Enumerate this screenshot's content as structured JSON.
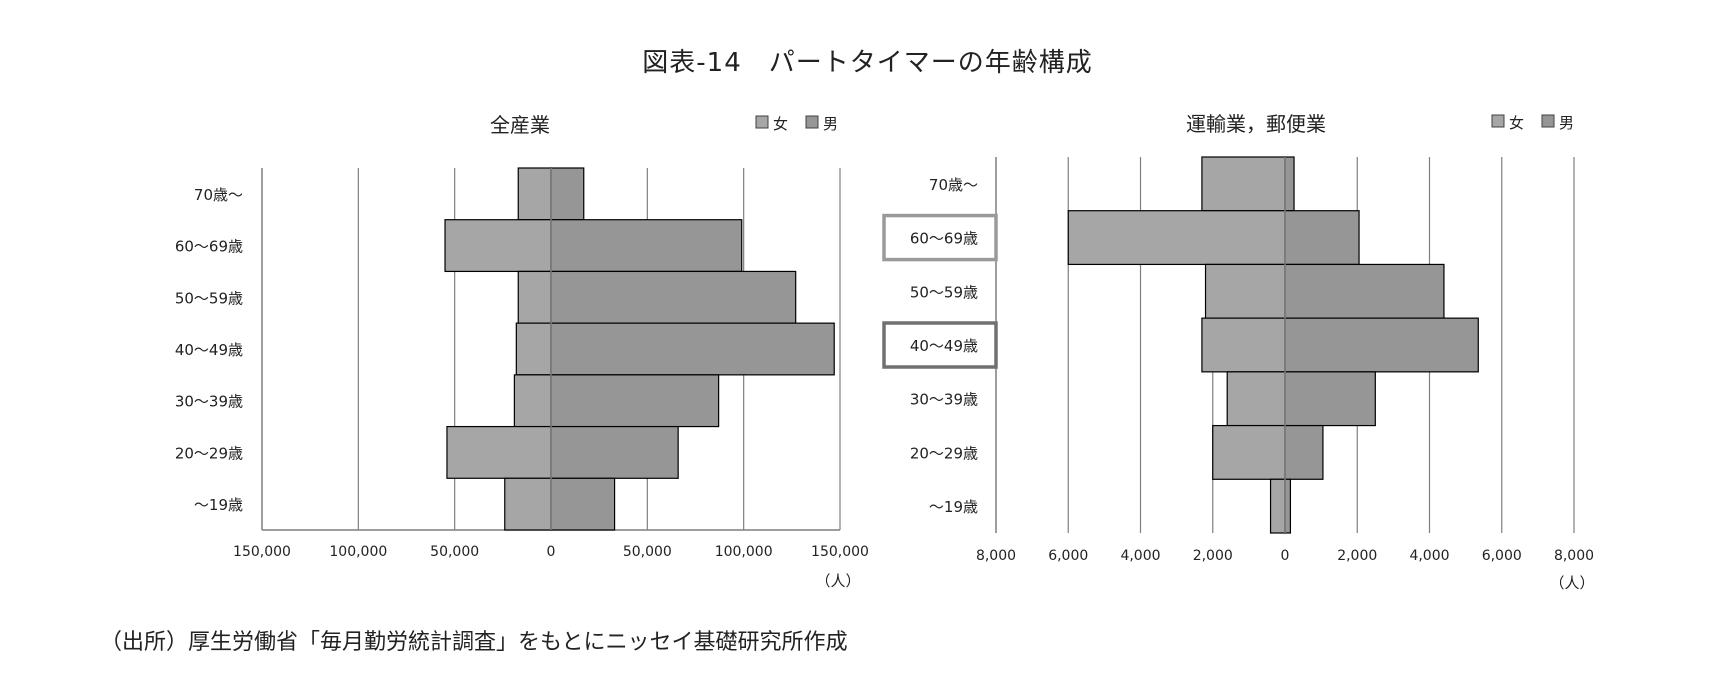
{
  "title": "図表-14　パートタイマーの年齢構成",
  "source": "（出所）厚生労働省「毎月勤労統計調査」をもとにニッセイ基礎研究所作成",
  "colors": {
    "female": "#a6a6a6",
    "male": "#969696",
    "grid": "#7f7f7f",
    "edge": "#000000"
  },
  "chart_data": [
    {
      "type": "bar",
      "title": "全産業",
      "categories": [
        "70歳～",
        "60～69歳",
        "50～59歳",
        "40～49歳",
        "30～39歳",
        "20～29歳",
        "～19歳"
      ],
      "series": [
        {
          "name": "女",
          "values": [
            17000,
            55000,
            17000,
            18000,
            19000,
            54000,
            24000
          ]
        },
        {
          "name": "男",
          "values": [
            17000,
            99000,
            127000,
            147000,
            87000,
            66000,
            33000
          ]
        }
      ],
      "xlim": [
        -150000,
        150000
      ],
      "tick_labels": [
        "150,000",
        "100,000",
        "50,000",
        "0",
        "50,000",
        "100,000",
        "150,000"
      ],
      "unit": "（人）",
      "legend": "top-right",
      "grid": true,
      "highlighted": []
    },
    {
      "type": "bar",
      "title": "運輸業，郵便業",
      "categories": [
        "70歳～",
        "60～69歳",
        "50～59歳",
        "40～49歳",
        "30～39歳",
        "20～29歳",
        "～19歳"
      ],
      "series": [
        {
          "name": "女",
          "values": [
            2300,
            6000,
            2200,
            2300,
            1600,
            2000,
            400
          ]
        },
        {
          "name": "男",
          "values": [
            250,
            2050,
            4400,
            5350,
            2500,
            1050,
            150
          ]
        }
      ],
      "xlim": [
        -8000,
        8000
      ],
      "tick_labels": [
        "8,000",
        "6,000",
        "4,000",
        "2,000",
        "0",
        "2,000",
        "4,000",
        "6,000",
        "8,000"
      ],
      "unit": "（人）",
      "legend": "top-right",
      "grid": true,
      "highlighted": [
        "60～69歳",
        "40～49歳"
      ]
    }
  ]
}
